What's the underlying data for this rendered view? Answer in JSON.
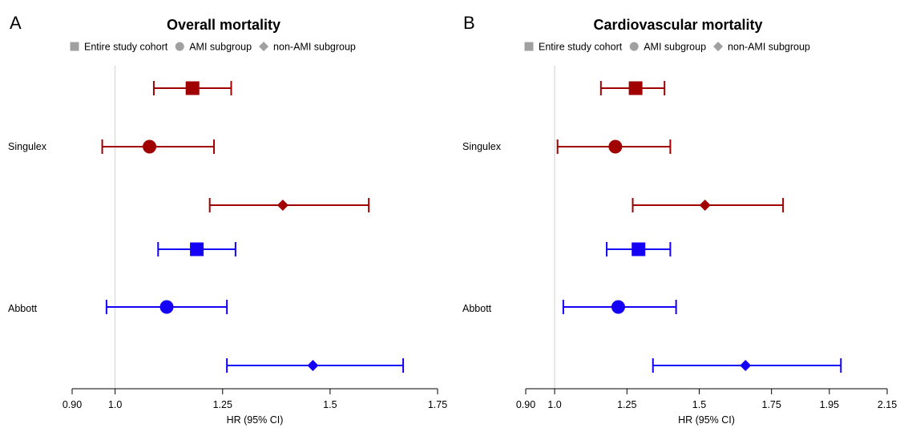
{
  "legend": {
    "entries": [
      {
        "label": "Entire study cohort",
        "marker": "square"
      },
      {
        "label": "AMI subgroup",
        "marker": "circle"
      },
      {
        "label": "non-AMI subgroup",
        "marker": "diamond"
      }
    ],
    "color": "#a0a0a0"
  },
  "colors": {
    "Singulex": "#a00000",
    "Abbott": "#1400f5",
    "reference_line": "#d0d0d0"
  },
  "chart_data": [
    {
      "type": "forest",
      "panel_letter": "A",
      "title": "Overall mortality",
      "xlabel": "HR (95% CI)",
      "reference": 1.0,
      "xlim": [
        0.9,
        1.75
      ],
      "ticks": [
        0.9,
        1.0,
        1.25,
        1.5,
        1.75
      ],
      "tick_labels": [
        "0.90",
        "1.0",
        "1.25",
        "1.5",
        "1.75"
      ],
      "groups": [
        {
          "name": "Singulex",
          "rows": [
            {
              "subgroup": "Entire study cohort",
              "marker": "square",
              "hr": 1.18,
              "lo": 1.09,
              "hi": 1.27
            },
            {
              "subgroup": "AMI subgroup",
              "marker": "circle",
              "hr": 1.08,
              "lo": 0.97,
              "hi": 1.23
            },
            {
              "subgroup": "non-AMI subgroup",
              "marker": "diamond",
              "hr": 1.39,
              "lo": 1.22,
              "hi": 1.59
            }
          ]
        },
        {
          "name": "Abbott",
          "rows": [
            {
              "subgroup": "Entire study cohort",
              "marker": "square",
              "hr": 1.19,
              "lo": 1.1,
              "hi": 1.28
            },
            {
              "subgroup": "AMI subgroup",
              "marker": "circle",
              "hr": 1.12,
              "lo": 0.98,
              "hi": 1.26
            },
            {
              "subgroup": "non-AMI subgroup",
              "marker": "diamond",
              "hr": 1.46,
              "lo": 1.26,
              "hi": 1.67
            }
          ]
        }
      ]
    },
    {
      "type": "forest",
      "panel_letter": "B",
      "title": "Cardiovascular mortality",
      "xlabel": "HR (95% CI)",
      "reference": 1.0,
      "xlim": [
        0.9,
        2.15
      ],
      "ticks": [
        0.9,
        1.0,
        1.25,
        1.5,
        1.75,
        1.95,
        2.15
      ],
      "tick_labels": [
        "0.90",
        "1.0",
        "1.25",
        "1.5",
        "1.75",
        "1.95",
        "2.15"
      ],
      "groups": [
        {
          "name": "Singulex",
          "rows": [
            {
              "subgroup": "Entire study cohort",
              "marker": "square",
              "hr": 1.28,
              "lo": 1.16,
              "hi": 1.38
            },
            {
              "subgroup": "AMI subgroup",
              "marker": "circle",
              "hr": 1.21,
              "lo": 1.01,
              "hi": 1.4
            },
            {
              "subgroup": "non-AMI subgroup",
              "marker": "diamond",
              "hr": 1.52,
              "lo": 1.27,
              "hi": 1.79
            }
          ]
        },
        {
          "name": "Abbott",
          "rows": [
            {
              "subgroup": "Entire study cohort",
              "marker": "square",
              "hr": 1.29,
              "lo": 1.18,
              "hi": 1.4
            },
            {
              "subgroup": "AMI subgroup",
              "marker": "circle",
              "hr": 1.22,
              "lo": 1.03,
              "hi": 1.42
            },
            {
              "subgroup": "non-AMI subgroup",
              "marker": "diamond",
              "hr": 1.66,
              "lo": 1.34,
              "hi": 1.99
            }
          ]
        }
      ]
    }
  ]
}
